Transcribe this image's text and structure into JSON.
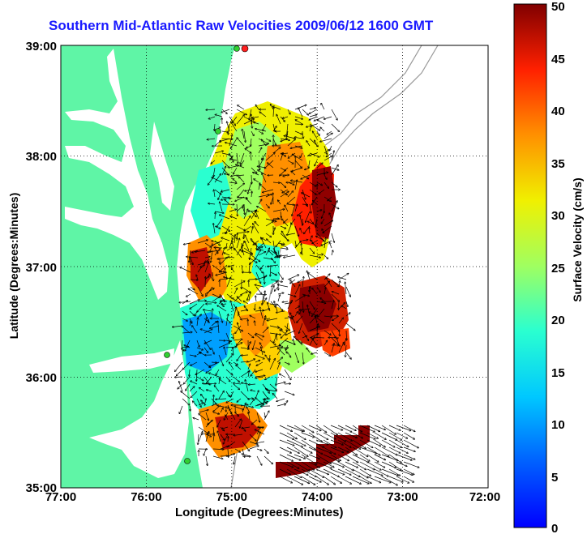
{
  "title": "Southern Mid-Atlantic Raw Velocities 2009/06/12 1600 GMT",
  "x_axis_label": "Longitude (Degrees:Minutes)",
  "y_axis_label": "Latitude (Degrees:Minutes)",
  "colorbar_label": "Surface Velocity (cm/s)",
  "x_ticks": [
    "77:00",
    "76:00",
    "75:00",
    "74:00",
    "73:00",
    "72:00"
  ],
  "y_ticks": [
    "39:00",
    "38:00",
    "37:00",
    "36:00",
    "35:00"
  ],
  "colorbar_ticks": [
    "0",
    "5",
    "10",
    "15",
    "20",
    "25",
    "30",
    "35",
    "40",
    "45",
    "50"
  ],
  "colors": {
    "land": "#5ff5a6",
    "title": "#1a1aff",
    "background": "#ffffff"
  },
  "map_extent": {
    "lon_min": -77,
    "lon_max": -72,
    "lat_min": 35,
    "lat_max": 39
  },
  "velocity_range_cm_s": [
    0,
    50
  ],
  "grid": true,
  "chart_data": {
    "type": "heatmap",
    "title": "Southern Mid-Atlantic Raw Velocities 2009/06/12 1600 GMT",
    "xlabel": "Longitude (Degrees:Minutes)",
    "ylabel": "Latitude (Degrees:Minutes)",
    "colorbar_label": "Surface Velocity (cm/s)",
    "xlim": [
      -77,
      -72
    ],
    "ylim": [
      35,
      39
    ],
    "clim": [
      0,
      50
    ],
    "colormap": "jet",
    "grid": true
  }
}
